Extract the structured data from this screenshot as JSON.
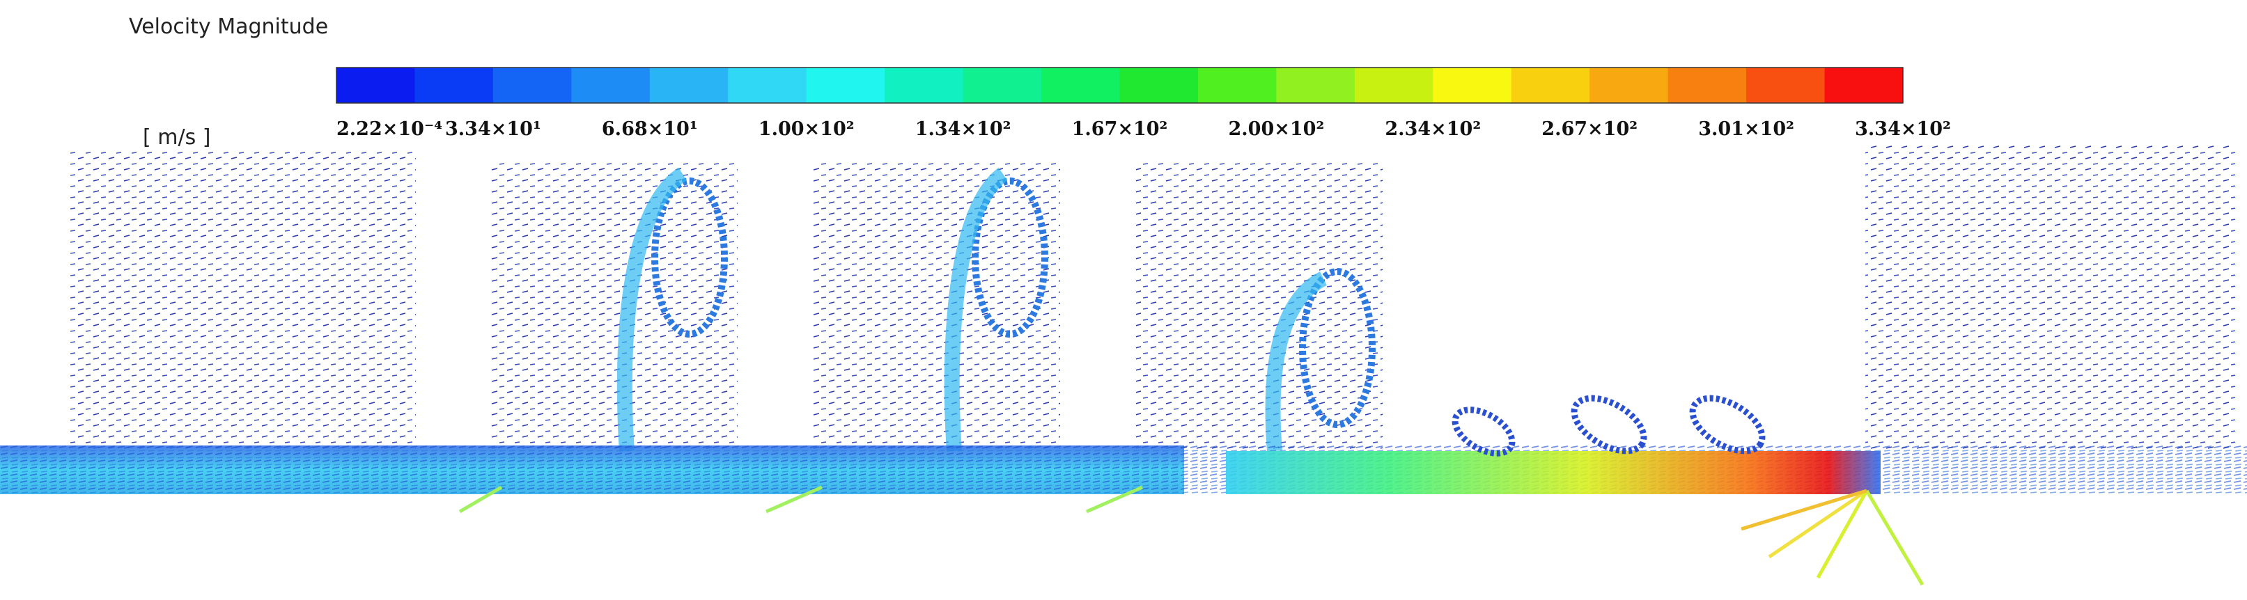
{
  "title": "Velocity Magnitude",
  "unit": "[ m/s ]",
  "colorbar": {
    "colors": [
      "#0a1cf0",
      "#0b3cf5",
      "#1464f5",
      "#1e8cf5",
      "#28b4f5",
      "#30d8f5",
      "#20f5f0",
      "#10f0c0",
      "#10f090",
      "#10f060",
      "#20e830",
      "#50f020",
      "#90f020",
      "#c8f010",
      "#f8f810",
      "#f8d010",
      "#f8a810",
      "#f88010",
      "#f85010",
      "#f81010"
    ],
    "labels": [
      "2.22×10⁻⁴",
      "3.34×10¹",
      "6.68×10¹",
      "1.00×10²",
      "1.34×10²",
      "1.67×10²",
      "2.00×10²",
      "2.34×10²",
      "2.67×10²",
      "3.01×10²",
      "3.34×10²"
    ]
  }
}
